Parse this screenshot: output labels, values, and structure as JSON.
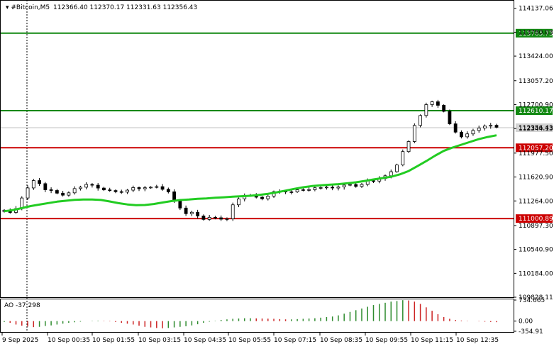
{
  "header": {
    "title": "#Bitcoin,M5",
    "ohlc": "112366.40 112370.17 112331.63 112356.43"
  },
  "indicator": {
    "label": "AO -37.298"
  },
  "colors": {
    "background": "#ffffff",
    "candle": "#000000",
    "ma_line": "#22cc22",
    "support_line": "#cc0000",
    "resistance_line": "#118811",
    "ao_up": "#2e8b2e",
    "ao_down": "#cc2222",
    "price_tag_gray": "#d3d3d3"
  },
  "chart_data": [
    {
      "type": "candlestick",
      "title": "#Bitcoin,M5",
      "ylim": [
        109828.11,
        114250
      ],
      "y_ticks": [
        "114137.06",
        "113780.03",
        "113424.00",
        "113057.20",
        "112700.90",
        "112344.13",
        "111977.50",
        "111620.90",
        "111264.00",
        "110897.30",
        "110540.90",
        "110184.00",
        "109828.11"
      ],
      "x_ticks": [
        "9 Sep 2025",
        "10 Sep 00:35",
        "10 Sep 01:55",
        "10 Sep 03:15",
        "10 Sep 04:35",
        "10 Sep 05:55",
        "10 Sep 07:15",
        "10 Sep 08:35",
        "10 Sep 09:55",
        "10 Sep 11:15",
        "10 Sep 12:35"
      ],
      "horizontal_levels": [
        {
          "label": "113765.73",
          "value": 113765.73,
          "color": "#118811"
        },
        {
          "label": "112610.17",
          "value": 112610.17,
          "color": "#118811"
        },
        {
          "label": "112057.20",
          "value": 112057.2,
          "color": "#cc0000"
        },
        {
          "label": "111000.89",
          "value": 111000.89,
          "color": "#cc0000"
        }
      ],
      "current_price": {
        "label": "112356.43",
        "value": 112356.43
      },
      "close_series": [
        111126,
        111092,
        111149,
        111308,
        111458,
        111568,
        111522,
        111431,
        111420,
        111380,
        111350,
        111385,
        111448,
        111469,
        111510,
        111499,
        111456,
        111429,
        111419,
        111402,
        111395,
        111425,
        111463,
        111446,
        111461,
        111469,
        111477,
        111437,
        111400,
        111262,
        111158,
        111074,
        111095,
        111040,
        110988,
        111020,
        111013,
        110992,
        110998,
        111206,
        111295,
        111343,
        111350,
        111320,
        111296,
        111336,
        111402,
        111408,
        111400,
        111398,
        111431,
        111424,
        111432,
        111460,
        111463,
        111470,
        111457,
        111472,
        111500,
        111509,
        111481,
        111510,
        111565,
        111560,
        111600,
        111639,
        111700,
        111800,
        112000,
        112150,
        112390,
        112538,
        112700,
        112743,
        112690,
        112600,
        112414,
        112290,
        112220,
        112264,
        112315,
        112350,
        112380,
        112392,
        112363
      ],
      "ma_series": [
        111110,
        111128,
        111157,
        111187,
        111210,
        111232,
        111253,
        111267,
        111279,
        111285,
        111285,
        111278,
        111256,
        111231,
        111212,
        111201,
        111203,
        111218,
        111240,
        111262,
        111277,
        111285,
        111295,
        111302,
        111311,
        111319,
        111327,
        111334,
        111341,
        111354,
        111370,
        111393,
        111418,
        111445,
        111468,
        111486,
        111497,
        111506,
        111514,
        111527,
        111542,
        111562,
        111584,
        111604,
        111624,
        111660,
        111710,
        111783,
        111858,
        111939,
        112010,
        112060,
        112103,
        112145,
        112186,
        112218,
        112243
      ],
      "ao": {
        "label": "AO -37.298",
        "ylim": [
          -354.91,
          734.665
        ],
        "y_ticks": [
          "734.665",
          "0.00",
          "-354.91"
        ],
        "values": [
          -30,
          -60,
          -120,
          -160,
          -190,
          -210,
          -200,
          -170,
          -150,
          -120,
          -90,
          -60,
          -40,
          -20,
          0,
          10,
          15,
          10,
          -10,
          -30,
          -60,
          -90,
          -120,
          -160,
          -200,
          -220,
          -240,
          -250,
          -240,
          -220,
          -200,
          -180,
          -150,
          -110,
          -60,
          -20,
          10,
          40,
          60,
          80,
          90,
          100,
          100,
          95,
          90,
          85,
          80,
          70,
          60,
          60,
          70,
          80,
          90,
          100,
          120,
          140,
          160,
          200,
          260,
          320,
          380,
          440,
          500,
          560,
          600,
          640,
          680,
          700,
          730,
          720,
          680,
          600,
          480,
          360,
          240,
          140,
          80,
          40,
          20,
          10,
          0,
          -10,
          -20,
          -30,
          -37
        ]
      }
    }
  ]
}
